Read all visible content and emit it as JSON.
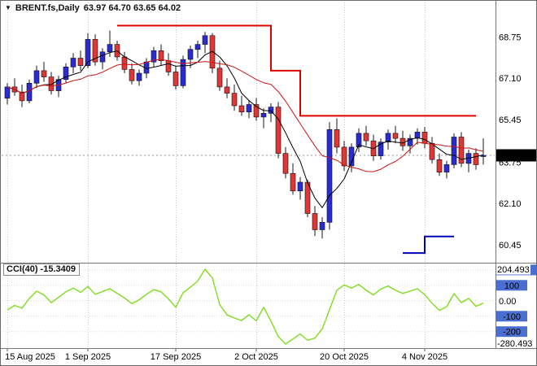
{
  "header": {
    "dropdown_icon": "▼",
    "symbol": "BRENT.fs,Daily",
    "ohlc": "63.97 64.70 63.65 64.02"
  },
  "colors": {
    "bull": "#2b2bd4",
    "bear": "#e03636",
    "wick": "#1a1a1a",
    "ma_fast": "#000000",
    "ma_slow": "#cc1515",
    "resistance": "#dd0000",
    "support": "#0000bb",
    "cci": "#7fdd1f",
    "level_badge": "#4a6fd0",
    "price_badge_bg": "#000000",
    "grid": "#c9c9c9"
  },
  "price_axis": {
    "ticks": [
      "68.75",
      "67.10",
      "65.45",
      "63.75",
      "62.10",
      "60.45"
    ],
    "current": "64.02"
  },
  "time_axis": {
    "labels": [
      {
        "text": "15 Aug 2025",
        "index": 0
      },
      {
        "text": "1 Sep 2025",
        "index": 11
      },
      {
        "text": "17 Sep 2025",
        "index": 23
      },
      {
        "text": "2 Oct 2025",
        "index": 34
      },
      {
        "text": "20 Oct 2025",
        "index": 46
      },
      {
        "text": "4 Nov 2025",
        "index": 57
      }
    ]
  },
  "indicator": {
    "label": "CCI(40) -15.3409",
    "name": "CCI",
    "period": 40,
    "value": -15.3409,
    "axis": {
      "max": "204.493",
      "min": "-280.493",
      "zero": "0.00",
      "levels": [
        200,
        100,
        -100,
        -200
      ]
    }
  },
  "chart_data": [
    {
      "type": "candlestick",
      "symbol": "BRENT.fs",
      "timeframe": "Daily",
      "ylim": [
        59.8,
        69.8
      ],
      "last": {
        "open": 63.97,
        "high": 64.7,
        "low": 63.65,
        "close": 64.02
      },
      "ohlc": [
        [
          66.3,
          66.9,
          66.05,
          66.75
        ],
        [
          66.75,
          67.1,
          66.4,
          66.55
        ],
        [
          66.55,
          66.85,
          65.95,
          66.2
        ],
        [
          66.2,
          67.05,
          66.1,
          66.9
        ],
        [
          66.9,
          67.6,
          66.7,
          67.4
        ],
        [
          67.4,
          67.75,
          66.95,
          67.15
        ],
        [
          67.15,
          67.35,
          66.45,
          66.6
        ],
        [
          66.6,
          67.2,
          66.35,
          67.05
        ],
        [
          67.05,
          67.7,
          66.9,
          67.55
        ],
        [
          67.55,
          68.1,
          67.3,
          67.9
        ],
        [
          67.9,
          68.2,
          67.4,
          67.6
        ],
        [
          67.6,
          68.9,
          67.5,
          68.65
        ],
        [
          68.65,
          68.85,
          67.6,
          67.75
        ],
        [
          67.75,
          68.3,
          67.45,
          68.15
        ],
        [
          68.15,
          69.0,
          67.95,
          68.45
        ],
        [
          68.45,
          68.6,
          67.8,
          67.95
        ],
        [
          67.95,
          68.15,
          67.3,
          67.45
        ],
        [
          67.45,
          67.7,
          66.85,
          67.0
        ],
        [
          67.0,
          67.45,
          66.8,
          67.3
        ],
        [
          67.3,
          67.9,
          67.1,
          67.75
        ],
        [
          67.75,
          68.35,
          67.55,
          68.2
        ],
        [
          68.2,
          68.45,
          67.6,
          67.8
        ],
        [
          67.8,
          68.1,
          67.2,
          67.35
        ],
        [
          67.35,
          67.6,
          66.65,
          66.8
        ],
        [
          66.8,
          68.0,
          66.7,
          67.85
        ],
        [
          67.85,
          68.4,
          67.5,
          68.25
        ],
        [
          68.25,
          68.6,
          67.9,
          68.45
        ],
        [
          68.45,
          68.95,
          68.1,
          68.8
        ],
        [
          68.8,
          68.9,
          67.3,
          67.5
        ],
        [
          67.5,
          67.8,
          66.6,
          66.75
        ],
        [
          66.75,
          67.1,
          66.3,
          66.5
        ],
        [
          66.5,
          66.85,
          65.8,
          66.0
        ],
        [
          66.0,
          66.4,
          65.6,
          65.75
        ],
        [
          65.75,
          66.2,
          65.5,
          66.05
        ],
        [
          66.05,
          66.3,
          65.4,
          65.55
        ],
        [
          65.55,
          65.9,
          65.1,
          65.7
        ],
        [
          65.7,
          66.1,
          65.35,
          65.95
        ],
        [
          65.95,
          66.15,
          63.9,
          64.1
        ],
        [
          64.1,
          64.35,
          63.1,
          63.3
        ],
        [
          63.3,
          63.7,
          62.45,
          62.6
        ],
        [
          62.6,
          63.15,
          62.25,
          62.95
        ],
        [
          62.95,
          63.05,
          61.55,
          61.7
        ],
        [
          61.7,
          62.0,
          60.8,
          61.05
        ],
        [
          61.05,
          61.55,
          60.7,
          61.35
        ],
        [
          61.35,
          65.35,
          61.05,
          65.05
        ],
        [
          65.05,
          65.5,
          64.1,
          64.35
        ],
        [
          64.35,
          64.6,
          63.4,
          63.6
        ],
        [
          63.6,
          64.5,
          63.35,
          64.35
        ],
        [
          64.35,
          65.1,
          64.15,
          64.9
        ],
        [
          64.9,
          65.2,
          64.4,
          64.6
        ],
        [
          64.6,
          64.85,
          63.8,
          64.0
        ],
        [
          64.0,
          64.7,
          63.85,
          64.55
        ],
        [
          64.55,
          65.05,
          64.25,
          64.9
        ],
        [
          64.9,
          65.2,
          64.5,
          64.7
        ],
        [
          64.7,
          65.0,
          64.2,
          64.4
        ],
        [
          64.4,
          64.85,
          64.1,
          64.7
        ],
        [
          64.7,
          65.1,
          64.45,
          64.95
        ],
        [
          64.95,
          65.15,
          64.3,
          64.5
        ],
        [
          64.5,
          64.75,
          63.7,
          63.85
        ],
        [
          63.85,
          64.1,
          63.2,
          63.35
        ],
        [
          63.35,
          63.8,
          63.1,
          63.65
        ],
        [
          63.65,
          64.9,
          63.5,
          64.75
        ],
        [
          64.75,
          64.95,
          63.55,
          63.7
        ],
        [
          63.7,
          64.25,
          63.35,
          64.1
        ],
        [
          64.1,
          64.3,
          63.45,
          63.65
        ],
        [
          63.97,
          64.7,
          63.65,
          64.02
        ]
      ],
      "overlays": {
        "ma_fast": {
          "type": "sma",
          "period": 5
        },
        "ma_slow": {
          "type": "sma",
          "period": 13
        },
        "resistance_steps": [
          {
            "from": 15,
            "to": 36,
            "price": 69.2
          },
          {
            "from": 36,
            "to": 40,
            "price": 67.4
          },
          {
            "from": 40,
            "to": 64,
            "price": 65.6
          }
        ],
        "support_steps": [
          {
            "from": 54,
            "to": 57,
            "price": 60.12
          },
          {
            "from": 57,
            "to": 61,
            "price": 60.78
          }
        ]
      }
    },
    {
      "type": "line",
      "name": "CCI(40)",
      "ylim": [
        -280.493,
        204.493
      ],
      "levels": [
        200,
        100,
        0,
        -100,
        -200
      ],
      "values": [
        -60,
        -30,
        -48,
        15,
        62,
        38,
        -12,
        22,
        58,
        82,
        55,
        92,
        42,
        60,
        78,
        48,
        18,
        -18,
        6,
        42,
        72,
        58,
        12,
        -42,
        52,
        88,
        128,
        204.493,
        148,
        -25,
        -92,
        -112,
        -128,
        -90,
        -130,
        -42,
        -132,
        -232,
        -280.493,
        -248,
        -215,
        -256,
        -242,
        -182,
        -58,
        68,
        102,
        82,
        106,
        68,
        38,
        76,
        96,
        68,
        48,
        62,
        78,
        40,
        -16,
        -62,
        -38,
        46,
        -12,
        16,
        -36,
        -15.3409
      ]
    }
  ]
}
